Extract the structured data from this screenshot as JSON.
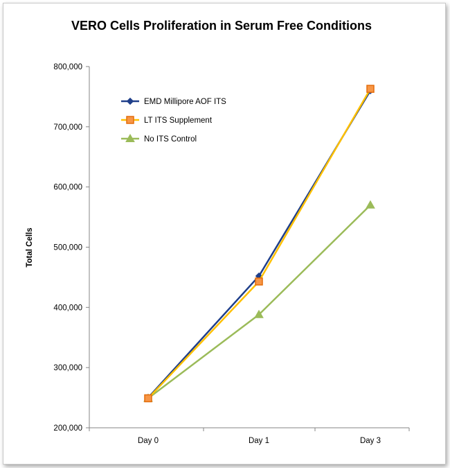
{
  "chart_data": {
    "type": "line",
    "title": "VERO Cells Proliferation in Serum Free Conditions",
    "xlabel": "",
    "ylabel": "Total Cells",
    "categories": [
      "Day 0",
      "Day 1",
      "Day 3"
    ],
    "ylim": [
      200000,
      800000
    ],
    "yticks": [
      {
        "value": 200000,
        "label": "200,000"
      },
      {
        "value": 300000,
        "label": "300,000"
      },
      {
        "value": 400000,
        "label": "400,000"
      },
      {
        "value": 500000,
        "label": "500,000"
      },
      {
        "value": 600000,
        "label": "600,000"
      },
      {
        "value": 700000,
        "label": "700,000"
      },
      {
        "value": 800000,
        "label": "800,000"
      }
    ],
    "grid": false,
    "legend_position": "top-left",
    "series": [
      {
        "name": "EMD Millipore AOF ITS",
        "values": [
          250000,
          452000,
          760000
        ],
        "color": "#1F3F8A",
        "marker": "diamond"
      },
      {
        "name": "LT ITS Supplement",
        "values": [
          249000,
          443000,
          763000
        ],
        "color": "#FFC000",
        "marker": "square",
        "marker_fill": "#F79646",
        "marker_stroke": "#E46C0A"
      },
      {
        "name": "No ITS Control",
        "values": [
          249000,
          388000,
          570000
        ],
        "color": "#9BBB59",
        "marker": "triangle"
      }
    ]
  }
}
